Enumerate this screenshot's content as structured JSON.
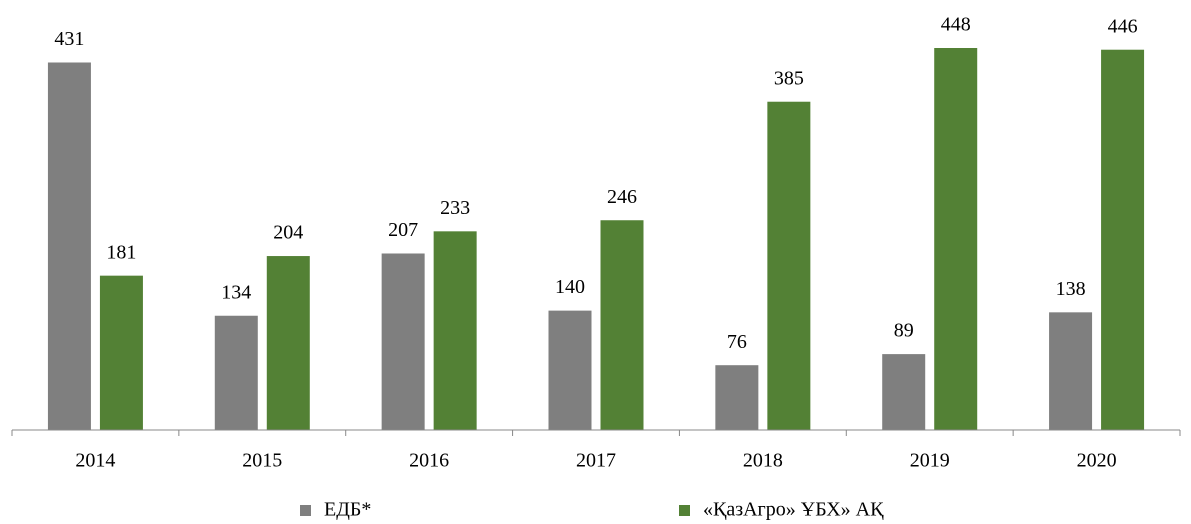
{
  "chart_data": {
    "type": "bar",
    "categories": [
      "2014",
      "2015",
      "2016",
      "2017",
      "2018",
      "2019",
      "2020"
    ],
    "series": [
      {
        "name": "ЕДБ*",
        "color": "#7f7f7f",
        "values": [
          431,
          134,
          207,
          140,
          76,
          89,
          138
        ]
      },
      {
        "name": "«ҚазАгро» ҰБХ» АҚ",
        "color": "#538135",
        "values": [
          181,
          204,
          233,
          246,
          385,
          448,
          446
        ]
      }
    ],
    "legend": "bottom"
  }
}
